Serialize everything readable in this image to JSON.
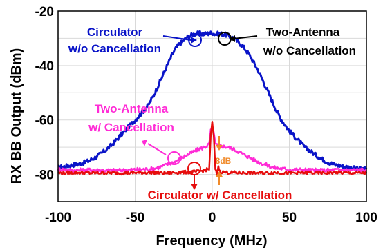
{
  "chart_data": {
    "type": "line",
    "title": "",
    "xlabel": "Frequency (MHz)",
    "ylabel": "RX BB Output (dBm)",
    "xlim": [
      -100,
      100
    ],
    "ylim": [
      -90,
      -20
    ],
    "xticks": [
      "-100",
      "-50",
      "0",
      "50",
      "100"
    ],
    "yticks": [
      "-20",
      "-40",
      "-60",
      "-80"
    ],
    "grid": true,
    "series": [
      {
        "color": "#0a14c8",
        "x": [
          -100,
          -95,
          -90,
          -85,
          -80,
          -75,
          -70,
          -65,
          -60,
          -55,
          -50,
          -45,
          -42,
          -40,
          -38,
          -36,
          -34,
          -32,
          -30,
          -28,
          -26,
          -24,
          -22,
          -20,
          -18,
          -16,
          -14,
          -12,
          -10,
          -8,
          -6,
          -4,
          -2,
          0,
          2,
          4,
          6,
          8,
          10,
          12,
          14,
          16,
          18,
          20,
          22,
          24,
          26,
          28,
          30,
          32,
          34,
          36,
          38,
          40,
          42,
          45,
          50,
          55,
          60,
          65,
          70,
          75,
          80,
          85,
          90,
          95,
          100
        ],
        "y": [
          -77.5,
          -77,
          -76.5,
          -76,
          -75,
          -73.5,
          -71.5,
          -69,
          -66,
          -63,
          -60,
          -57,
          -55,
          -53,
          -51,
          -48.5,
          -46,
          -43.5,
          -41,
          -38.5,
          -36,
          -34,
          -32.5,
          -31.5,
          -30.5,
          -29.5,
          -29,
          -28.5,
          -28.3,
          -28.2,
          -28.5,
          -28.3,
          -28.2,
          -28,
          -28.5,
          -28.3,
          -28.4,
          -28.5,
          -29,
          -29.5,
          -30,
          -31,
          -32,
          -33,
          -34.5,
          -36,
          -38,
          -40,
          -42,
          -44.5,
          -47,
          -49.5,
          -52,
          -54.5,
          -57,
          -60,
          -64,
          -67,
          -70,
          -72,
          -74,
          -75.5,
          -76.5,
          -77,
          -77.5,
          -78,
          -78
        ]
      },
      {
        "color": "#ff2bd6",
        "x": [
          -100,
          -90,
          -80,
          -70,
          -60,
          -50,
          -40,
          -35,
          -30,
          -25,
          -20,
          -15,
          -10,
          -5,
          -2,
          -1,
          0,
          1,
          2,
          5,
          10,
          15,
          20,
          25,
          30,
          35,
          40,
          50,
          60,
          70,
          80,
          90,
          100
        ],
        "y": [
          -78,
          -78.5,
          -78.3,
          -78.5,
          -78.5,
          -78.2,
          -78,
          -77.5,
          -76.5,
          -75.5,
          -74,
          -72.5,
          -71,
          -70,
          -69,
          -64,
          -63,
          -64,
          -69,
          -69.5,
          -70,
          -71,
          -72.5,
          -74,
          -75.5,
          -76.5,
          -77.5,
          -78.2,
          -78.3,
          -78.5,
          -78.3,
          -78.4,
          -78.2
        ]
      },
      {
        "color": "#e60d0d",
        "x": [
          -100,
          -90,
          -80,
          -70,
          -60,
          -50,
          -40,
          -30,
          -20,
          -10,
          -5,
          -2,
          -1,
          0,
          1,
          2,
          3,
          4,
          5,
          10,
          20,
          30,
          40,
          50,
          60,
          70,
          80,
          90,
          100
        ],
        "y": [
          -79.5,
          -79.3,
          -79.5,
          -79.4,
          -79.5,
          -79.4,
          -79.3,
          -79.5,
          -79.2,
          -79,
          -78.5,
          -78,
          -66,
          -61,
          -66,
          -78,
          -80,
          -77,
          -79,
          -79.3,
          -79.4,
          -79.5,
          -79.3,
          -79.5,
          -79.4,
          -79.5,
          -79.3,
          -79.5,
          -79.4
        ]
      }
    ]
  },
  "annotations": {
    "circulator_wo_line1": "Circulator",
    "circulator_wo_line2": "w/o Cancellation",
    "two_antenna_wo_line1": "Two-Antenna",
    "two_antenna_wo_line2": "w/o Cancellation",
    "two_antenna_w_line1": "Two-Antenna",
    "two_antenna_w_line2": "w/ Cancellation",
    "circulator_w": "Circulator w/ Cancellation",
    "gap_label": "8dB"
  },
  "colors": {
    "blue": "#0a14c8",
    "magenta": "#ff2bd6",
    "red": "#e60d0d",
    "orange": "#f08a2a"
  }
}
